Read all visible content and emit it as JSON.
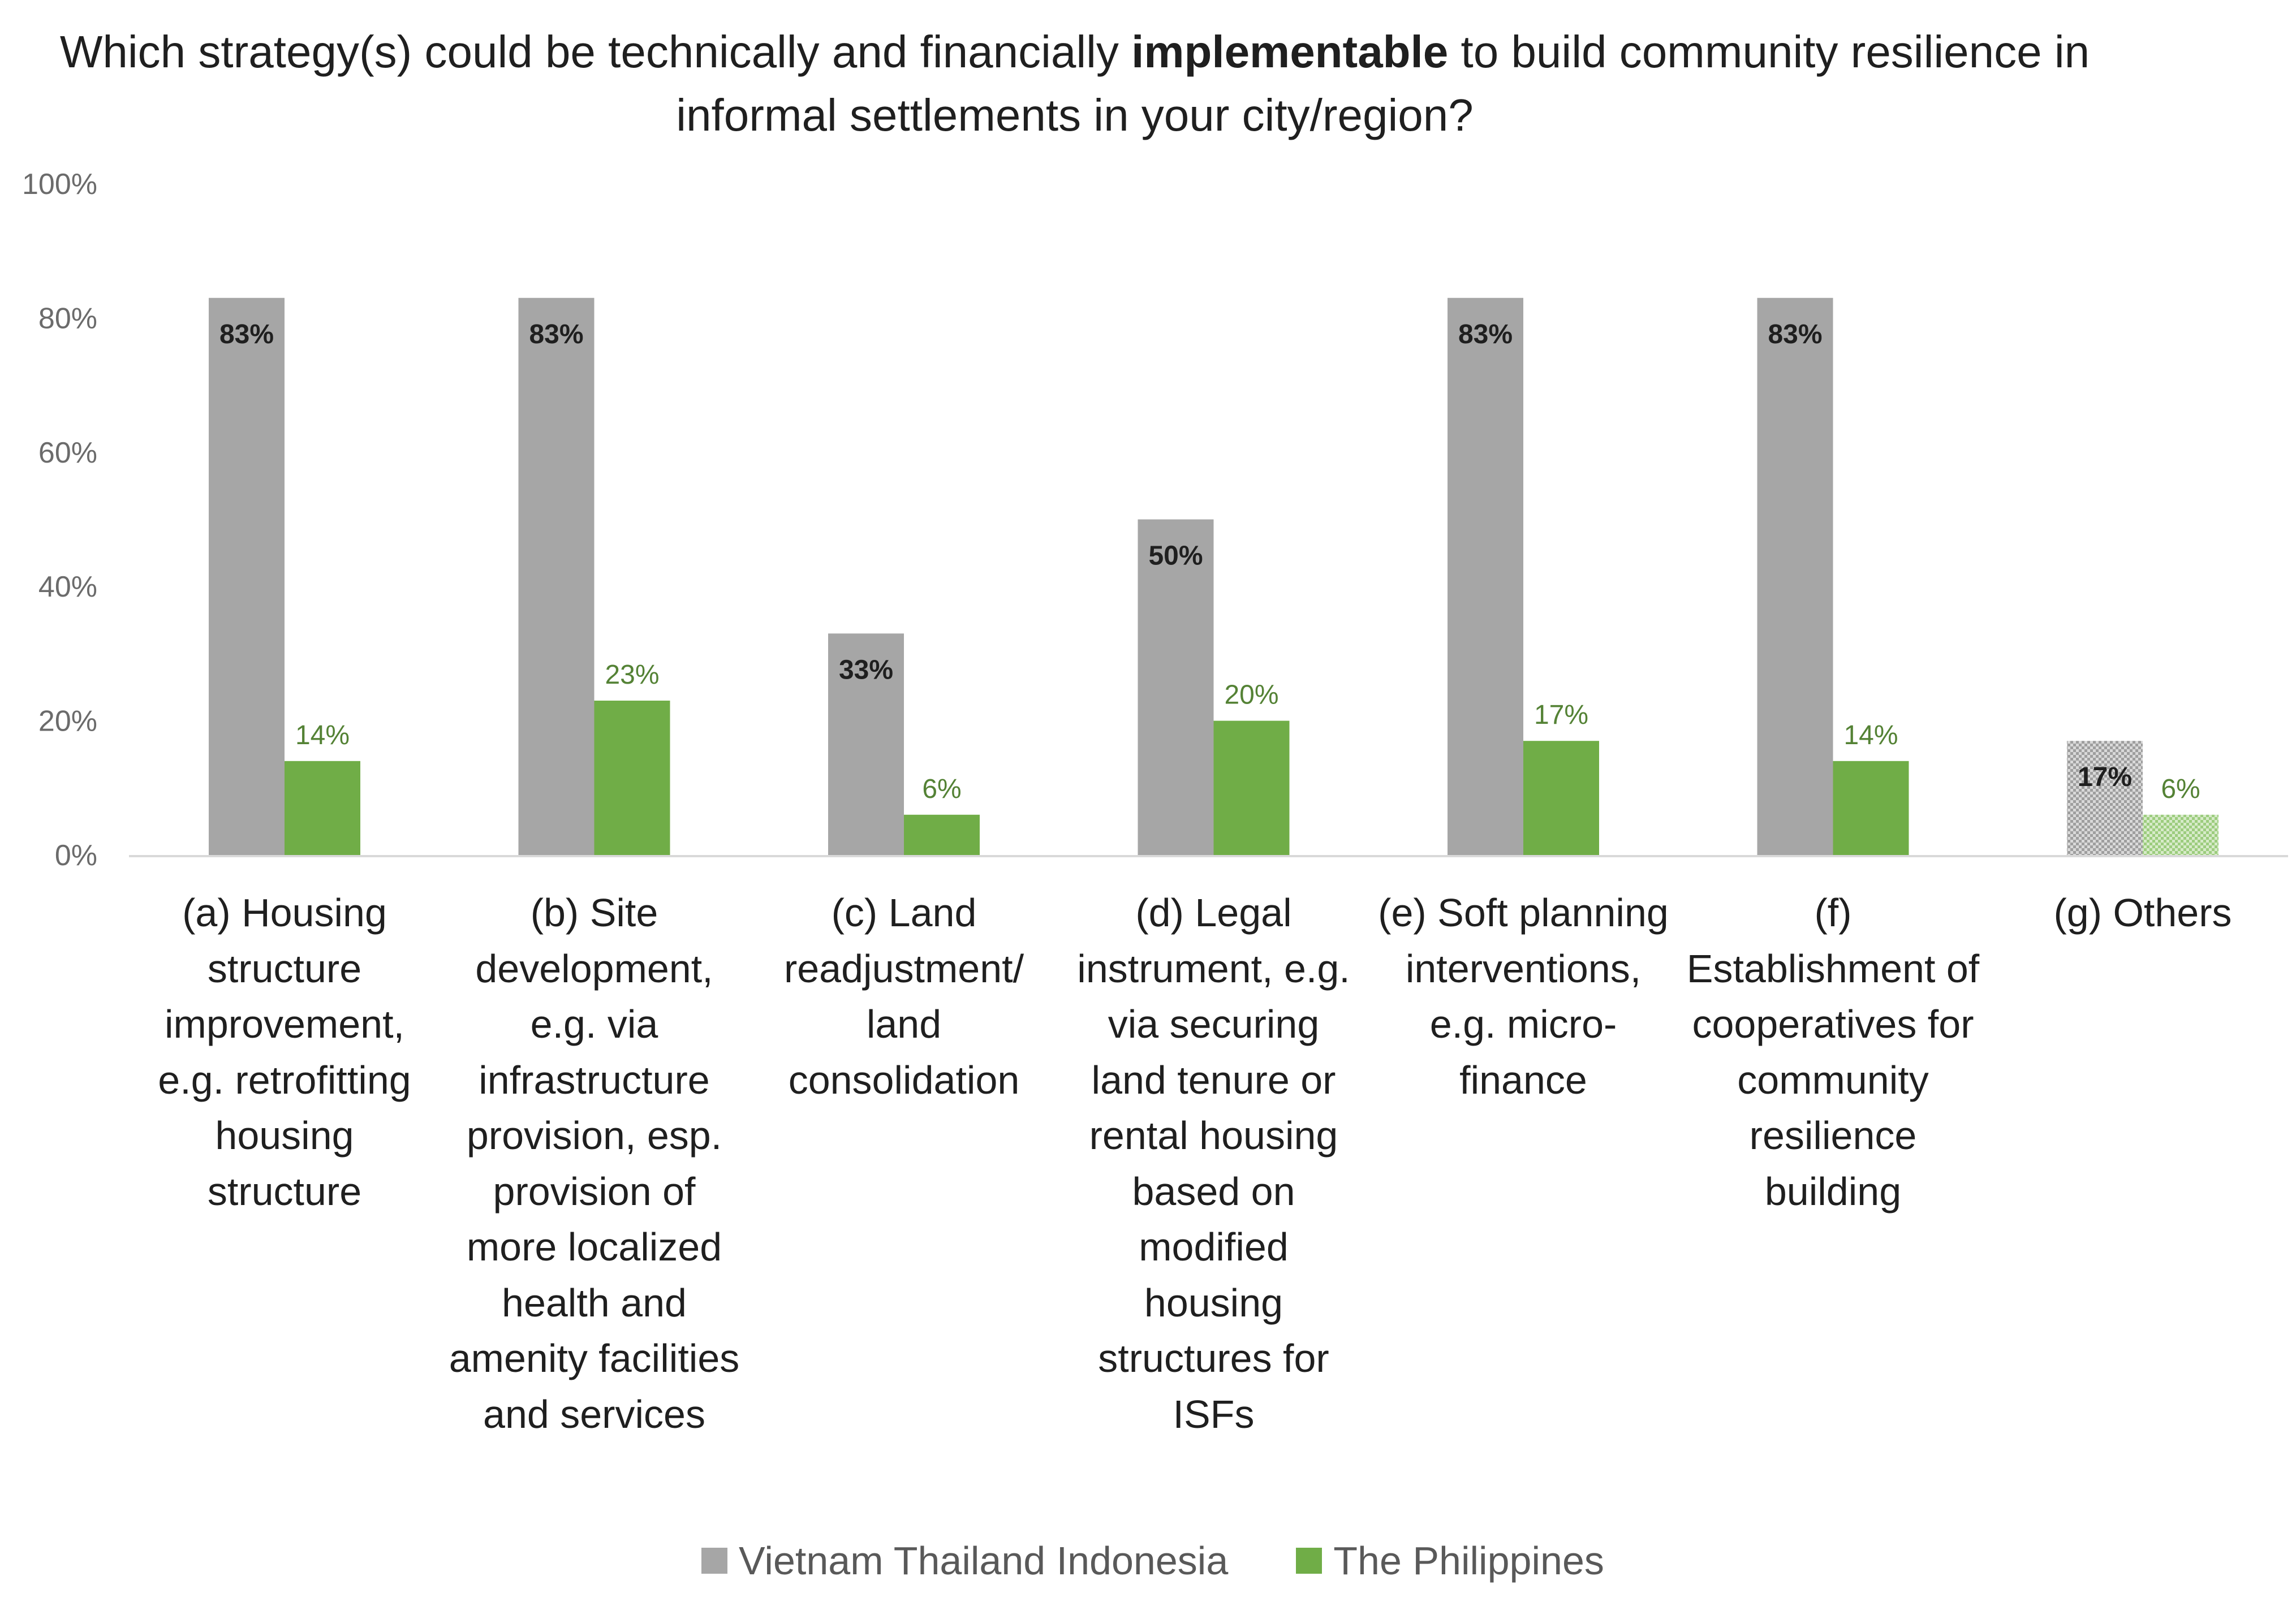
{
  "chart_data": {
    "type": "bar",
    "title_parts": {
      "before": "Which strategy(s) could be technically and financially ",
      "bold": "implementable",
      "after": " to build community resilience in informal settlements in your city/region?"
    },
    "categories": [
      "(a) Housing structure improvement, e.g. retrofitting housing structure",
      "(b) Site development, e.g. via infrastructure provision, esp. provision of more localized health and amenity facilities and services",
      "(c) Land readjustment/ land consolidation",
      "(d) Legal instrument, e.g. via securing land tenure or rental housing based on modified housing structures for ISFs",
      "(e) Soft planning interventions, e.g. micro-finance",
      "(f) Establishment of cooperatives for community resilience building",
      "(g) Others"
    ],
    "series": [
      {
        "name": "Vietnam Thailand Indonesia",
        "color": "#a6a6a6",
        "values": [
          83,
          83,
          33,
          50,
          83,
          83,
          17
        ],
        "labels": [
          "83%",
          "83%",
          "33%",
          "50%",
          "83%",
          "83%",
          "17%"
        ]
      },
      {
        "name": "The Philippines",
        "color": "#70ad47",
        "values": [
          14,
          23,
          6,
          20,
          17,
          14,
          6
        ],
        "labels": [
          "14%",
          "23%",
          "6%",
          "20%",
          "17%",
          "14%",
          "6%"
        ]
      }
    ],
    "patterned_categories": [
      6
    ],
    "yticks": [
      "0%",
      "20%",
      "40%",
      "60%",
      "80%",
      "100%"
    ],
    "ylim": [
      0,
      100
    ],
    "xlabel": "",
    "ylabel": "",
    "legend_position": "bottom",
    "grid": false
  }
}
